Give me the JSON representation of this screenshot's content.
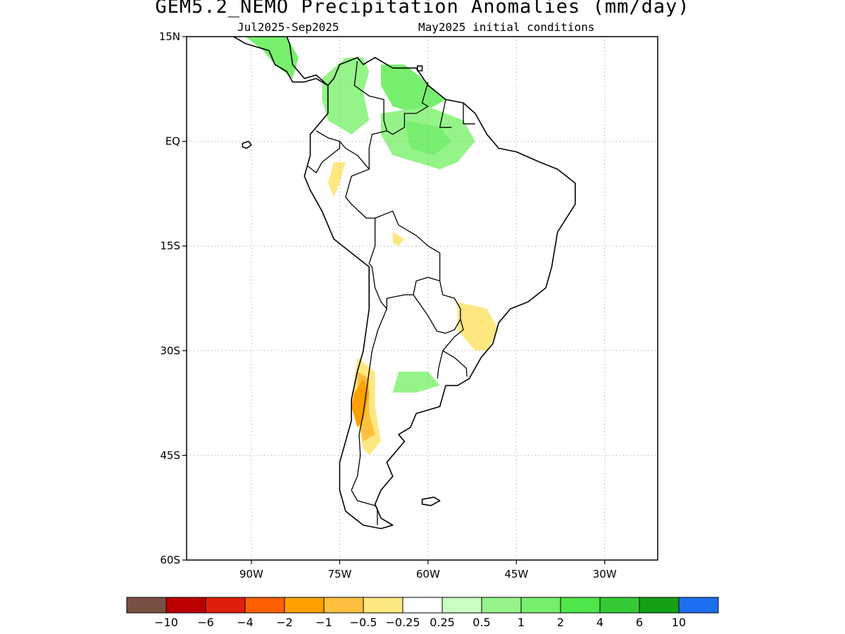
{
  "title": "GEM5.2_NEMO Precipitation Anomalies (mm/day)",
  "subtitle_period": "Jul2025-Sep2025",
  "subtitle_ic": "May2025 initial conditions",
  "map": {
    "projection": "lat-lon",
    "lon_range": [
      -101,
      -21
    ],
    "lat_range": [
      -60,
      15
    ],
    "grid": "dotted",
    "lat_ticks": [
      {
        "value": 15,
        "label": "15N"
      },
      {
        "value": 0,
        "label": "EQ"
      },
      {
        "value": -15,
        "label": "15S"
      },
      {
        "value": -30,
        "label": "30S"
      },
      {
        "value": -45,
        "label": "45S"
      },
      {
        "value": -60,
        "label": "60S"
      }
    ],
    "lon_ticks": [
      {
        "value": -90,
        "label": "90W"
      },
      {
        "value": -75,
        "label": "75W"
      },
      {
        "value": -60,
        "label": "60W"
      },
      {
        "value": -45,
        "label": "45W"
      },
      {
        "value": -30,
        "label": "30W"
      }
    ]
  },
  "colorbar": {
    "colors": [
      "#7b5044",
      "#bb0000",
      "#e01e0c",
      "#ff6000",
      "#ffa000",
      "#ffc040",
      "#ffe780",
      "#ffffff",
      "#c8ffc0",
      "#95f489",
      "#78ee6e",
      "#4ee64a",
      "#35ca35",
      "#14a014",
      "#1e6ef0"
    ],
    "labels": [
      "-10",
      "-6",
      "-4",
      "-2",
      "-1",
      "-0.5",
      "-0.25",
      "0.25",
      "0.5",
      "1",
      "2",
      "4",
      "6",
      "10"
    ]
  },
  "anomaly_regions": [
    {
      "name": "central-america-wet",
      "value": 1,
      "lonlat": [
        [
          -91,
          15
        ],
        [
          -87,
          16
        ],
        [
          -84,
          15
        ],
        [
          -82,
          12
        ],
        [
          -83,
          9
        ],
        [
          -86,
          11
        ],
        [
          -88,
          13
        ]
      ]
    },
    {
      "name": "colombia-venezuela-wet",
      "value": 0.5,
      "lonlat": [
        [
          -78,
          9
        ],
        [
          -74,
          12
        ],
        [
          -71,
          12
        ],
        [
          -70,
          10
        ],
        [
          -71,
          7
        ],
        [
          -70,
          3
        ],
        [
          -73,
          1
        ],
        [
          -77,
          3
        ],
        [
          -78,
          6
        ]
      ]
    },
    {
      "name": "venezuela-guyana-wet",
      "value": 1,
      "lonlat": [
        [
          -68,
          11
        ],
        [
          -64,
          11
        ],
        [
          -61,
          9
        ],
        [
          -57,
          6
        ],
        [
          -59,
          5
        ],
        [
          -62,
          4
        ],
        [
          -66,
          5
        ],
        [
          -68,
          8
        ]
      ]
    },
    {
      "name": "amazon-wet",
      "value": 0.5,
      "lonlat": [
        [
          -68,
          4
        ],
        [
          -60,
          5
        ],
        [
          -54,
          3
        ],
        [
          -52,
          0
        ],
        [
          -55,
          -3
        ],
        [
          -58,
          -4
        ],
        [
          -62,
          -3
        ],
        [
          -66,
          -2
        ],
        [
          -68,
          1
        ]
      ]
    },
    {
      "name": "amazon-core-wet",
      "value": 1,
      "lonlat": [
        [
          -64,
          3
        ],
        [
          -58,
          2
        ],
        [
          -56,
          0
        ],
        [
          -59,
          -2
        ],
        [
          -63,
          -1
        ]
      ]
    },
    {
      "name": "argentina-wet",
      "value": 0.5,
      "lonlat": [
        [
          -65,
          -33
        ],
        [
          -60,
          -33
        ],
        [
          -58,
          -35
        ],
        [
          -62,
          -36
        ],
        [
          -66,
          -36
        ]
      ]
    },
    {
      "name": "peru-dry",
      "value": -0.5,
      "lonlat": [
        [
          -76,
          -3
        ],
        [
          -74,
          -3
        ],
        [
          -75,
          -6
        ],
        [
          -76,
          -8
        ],
        [
          -77,
          -6
        ]
      ]
    },
    {
      "name": "bolivia-dry",
      "value": -0.5,
      "lonlat": [
        [
          -66,
          -13
        ],
        [
          -64,
          -14
        ],
        [
          -65,
          -15
        ],
        [
          -66,
          -14.5
        ]
      ]
    },
    {
      "name": "sebrazil-dry",
      "value": -0.5,
      "lonlat": [
        [
          -55,
          -23
        ],
        [
          -50,
          -24
        ],
        [
          -48,
          -27
        ],
        [
          -50,
          -30
        ],
        [
          -52,
          -30
        ],
        [
          -55,
          -27
        ]
      ]
    },
    {
      "name": "andes-dry-outer",
      "value": -0.5,
      "lonlat": [
        [
          -72,
          -31
        ],
        [
          -69,
          -33
        ],
        [
          -69,
          -38
        ],
        [
          -68,
          -43
        ],
        [
          -70,
          -45
        ],
        [
          -71,
          -44
        ],
        [
          -72,
          -40
        ],
        [
          -73,
          -37
        ]
      ]
    },
    {
      "name": "andes-dry-mid",
      "value": -1,
      "lonlat": [
        [
          -72,
          -33
        ],
        [
          -70,
          -34
        ],
        [
          -70,
          -39
        ],
        [
          -69,
          -42
        ],
        [
          -71,
          -43
        ],
        [
          -72,
          -39
        ]
      ]
    },
    {
      "name": "andes-dry-core",
      "value": -2,
      "lonlat": [
        [
          -71,
          -34
        ],
        [
          -70,
          -36
        ],
        [
          -71,
          -40
        ],
        [
          -72,
          -41
        ],
        [
          -73,
          -38
        ],
        [
          -72.5,
          -36
        ]
      ]
    }
  ],
  "coastlines": [
    {
      "name": "south-america",
      "lonlat": [
        [
          -77,
          8
        ],
        [
          -76,
          9
        ],
        [
          -75,
          11
        ],
        [
          -72,
          12
        ],
        [
          -71,
          11
        ],
        [
          -69,
          12
        ],
        [
          -66,
          10.5
        ],
        [
          -62,
          10.5
        ],
        [
          -60,
          8
        ],
        [
          -57,
          6
        ],
        [
          -54,
          5.5
        ],
        [
          -52,
          4
        ],
        [
          -50,
          1
        ],
        [
          -48,
          -1
        ],
        [
          -45,
          -1.5
        ],
        [
          -41,
          -3
        ],
        [
          -38,
          -4
        ],
        [
          -35,
          -6
        ],
        [
          -35,
          -9
        ],
        [
          -38,
          -13
        ],
        [
          -39,
          -18
        ],
        [
          -40,
          -21
        ],
        [
          -43,
          -23
        ],
        [
          -46,
          -24
        ],
        [
          -48,
          -26
        ],
        [
          -49,
          -29
        ],
        [
          -51,
          -31
        ],
        [
          -53,
          -34
        ],
        [
          -55,
          -35
        ],
        [
          -57,
          -35
        ],
        [
          -58,
          -38
        ],
        [
          -62,
          -39
        ],
        [
          -63,
          -41
        ],
        [
          -65,
          -42
        ],
        [
          -64,
          -43
        ],
        [
          -67,
          -46
        ],
        [
          -66,
          -48
        ],
        [
          -68,
          -50
        ],
        [
          -69,
          -52
        ],
        [
          -68,
          -54
        ],
        [
          -66,
          -55
        ],
        [
          -68,
          -55.5
        ],
        [
          -71,
          -55
        ],
        [
          -74,
          -53
        ],
        [
          -75,
          -50
        ],
        [
          -75,
          -46
        ],
        [
          -74,
          -43
        ],
        [
          -73,
          -40
        ],
        [
          -73,
          -37
        ],
        [
          -72,
          -33
        ],
        [
          -71,
          -30
        ],
        [
          -70,
          -24
        ],
        [
          -70,
          -18
        ],
        [
          -73,
          -16
        ],
        [
          -76,
          -14
        ],
        [
          -78,
          -10
        ],
        [
          -80,
          -7
        ],
        [
          -81,
          -5
        ],
        [
          -80,
          -2
        ],
        [
          -80,
          1
        ],
        [
          -79,
          2
        ],
        [
          -77,
          4
        ],
        [
          -77,
          7
        ],
        [
          -77,
          8
        ]
      ]
    },
    {
      "name": "central-america",
      "lonlat": [
        [
          -77,
          8
        ],
        [
          -79,
          9
        ],
        [
          -81,
          8.5
        ],
        [
          -83,
          8.5
        ],
        [
          -84,
          10
        ],
        [
          -86,
          11
        ],
        [
          -87,
          13
        ],
        [
          -89,
          13.5
        ],
        [
          -91,
          14
        ],
        [
          -93,
          15
        ],
        [
          -95,
          16
        ]
      ]
    },
    {
      "name": "central-america-caribbean",
      "lonlat": [
        [
          -77,
          8
        ],
        [
          -79,
          9.5
        ],
        [
          -81,
          9
        ],
        [
          -83,
          11
        ],
        [
          -83.5,
          14
        ],
        [
          -84,
          15
        ],
        [
          -86,
          16
        ],
        [
          -88,
          15.8
        ]
      ]
    },
    {
      "name": "falklands",
      "lonlat": [
        [
          -61,
          -51.3
        ],
        [
          -59,
          -51
        ],
        [
          -58,
          -51.5
        ],
        [
          -59.5,
          -52.2
        ],
        [
          -61,
          -52
        ]
      ]
    },
    {
      "name": "trinidad",
      "lonlat": [
        [
          -61.8,
          10.1
        ],
        [
          -61,
          10.1
        ],
        [
          -61,
          10.8
        ],
        [
          -61.8,
          10.8
        ]
      ]
    },
    {
      "name": "galapagos",
      "lonlat": [
        [
          -91.5,
          -0.3
        ],
        [
          -90.5,
          0
        ],
        [
          -90,
          -0.5
        ],
        [
          -90.8,
          -1
        ],
        [
          -91.5,
          -0.8
        ]
      ]
    }
  ],
  "borders": [
    {
      "name": "colombia-venezuela",
      "lonlat": [
        [
          -72,
          11.5
        ],
        [
          -72.5,
          8
        ],
        [
          -70,
          6.5
        ],
        [
          -67.5,
          6
        ],
        [
          -67.5,
          3
        ],
        [
          -67,
          1.5
        ]
      ]
    },
    {
      "name": "venezuela-guyana",
      "lonlat": [
        [
          -60,
          8.5
        ],
        [
          -61,
          5.5
        ],
        [
          -60,
          5
        ],
        [
          -62,
          4
        ],
        [
          -64,
          4
        ],
        [
          -64,
          2
        ],
        [
          -66,
          1
        ],
        [
          -67,
          1.5
        ]
      ]
    },
    {
      "name": "guyana-suriname",
      "lonlat": [
        [
          -57,
          6
        ],
        [
          -58,
          2
        ],
        [
          -56,
          2
        ]
      ]
    },
    {
      "name": "suriname-fg",
      "lonlat": [
        [
          -54,
          5.5
        ],
        [
          -54,
          2.5
        ],
        [
          -52,
          2.5
        ]
      ]
    },
    {
      "name": "colombia-ecuador-peru",
      "lonlat": [
        [
          -79,
          1.5
        ],
        [
          -77,
          0.5
        ],
        [
          -75,
          0
        ],
        [
          -74,
          -1
        ],
        [
          -72,
          -2
        ],
        [
          -70,
          -4
        ],
        [
          -70,
          -1
        ],
        [
          -69.5,
          1
        ],
        [
          -67,
          1.5
        ]
      ]
    },
    {
      "name": "ecuador-peru",
      "lonlat": [
        [
          -80.5,
          -3.5
        ],
        [
          -79,
          -4.5
        ],
        [
          -78,
          -3
        ],
        [
          -75,
          -1
        ],
        [
          -75,
          0
        ]
      ]
    },
    {
      "name": "peru-brazil",
      "lonlat": [
        [
          -70,
          -4
        ],
        [
          -73,
          -5
        ],
        [
          -74,
          -8
        ],
        [
          -73,
          -9
        ],
        [
          -70.5,
          -11
        ],
        [
          -69,
          -11
        ]
      ]
    },
    {
      "name": "peru-bolivia-chile",
      "lonlat": [
        [
          -69,
          -11
        ],
        [
          -69,
          -13
        ],
        [
          -69,
          -15
        ],
        [
          -70,
          -17.5
        ],
        [
          -69.5,
          -18
        ],
        [
          -69,
          -21
        ],
        [
          -68,
          -23
        ],
        [
          -67,
          -24
        ]
      ]
    },
    {
      "name": "brazil-bolivia",
      "lonlat": [
        [
          -69,
          -11
        ],
        [
          -66,
          -10
        ],
        [
          -65,
          -12
        ],
        [
          -62,
          -13.5
        ],
        [
          -60,
          -15
        ],
        [
          -58,
          -16
        ],
        [
          -58,
          -18
        ],
        [
          -58,
          -20
        ]
      ]
    },
    {
      "name": "bolivia-paraguay-argentina",
      "lonlat": [
        [
          -58,
          -20
        ],
        [
          -60,
          -19.5
        ],
        [
          -62,
          -20
        ],
        [
          -62.5,
          -22
        ],
        [
          -64,
          -22
        ],
        [
          -67,
          -22.5
        ],
        [
          -67,
          -24
        ]
      ]
    },
    {
      "name": "paraguay-brazil-argentina",
      "lonlat": [
        [
          -58,
          -20
        ],
        [
          -57.5,
          -22
        ],
        [
          -55.5,
          -22.5
        ],
        [
          -54.5,
          -24
        ],
        [
          -54.5,
          -25.5
        ],
        [
          -55.5,
          -27
        ],
        [
          -57,
          -27.5
        ],
        [
          -58.5,
          -27.2
        ],
        [
          -60,
          -25
        ],
        [
          -62.5,
          -22
        ]
      ]
    },
    {
      "name": "chile-argentina",
      "lonlat": [
        [
          -67,
          -24
        ],
        [
          -68.5,
          -27
        ],
        [
          -69.5,
          -30
        ],
        [
          -70,
          -33
        ],
        [
          -70.5,
          -36
        ],
        [
          -71,
          -39
        ],
        [
          -71.7,
          -42
        ],
        [
          -71.5,
          -45
        ],
        [
          -72,
          -48
        ],
        [
          -73,
          -50
        ],
        [
          -72,
          -51.5
        ],
        [
          -69,
          -52.2
        ],
        [
          -68.6,
          -52.6
        ],
        [
          -68.6,
          -55
        ]
      ]
    },
    {
      "name": "argentina-brazil-uruguay",
      "lonlat": [
        [
          -54.5,
          -25.5
        ],
        [
          -54,
          -27
        ],
        [
          -55.5,
          -28
        ],
        [
          -57.5,
          -30
        ],
        [
          -56.5,
          -30.5
        ],
        [
          -55.5,
          -31
        ],
        [
          -53.5,
          -32.5
        ],
        [
          -53.4,
          -33.7
        ]
      ]
    },
    {
      "name": "uruguay-argentina",
      "lonlat": [
        [
          -57.5,
          -30
        ],
        [
          -58.2,
          -32.5
        ],
        [
          -58.4,
          -34
        ]
      ]
    }
  ]
}
